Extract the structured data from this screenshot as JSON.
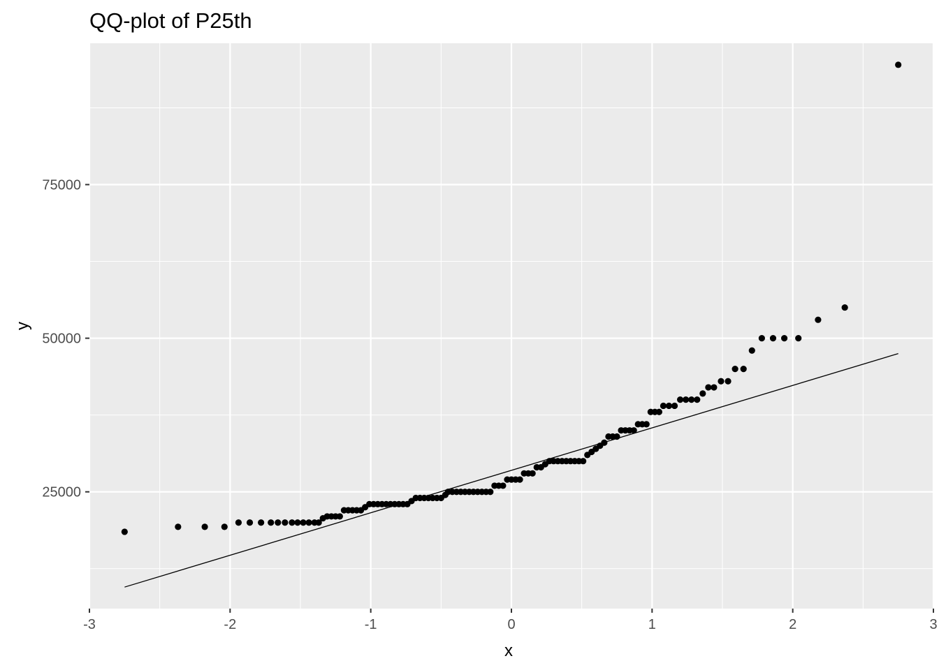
{
  "chart_data": {
    "type": "scatter",
    "title": "QQ-plot of P25th",
    "xlabel": "x",
    "ylabel": "y",
    "xlim": [
      -3.0,
      3.0
    ],
    "ylim": [
      6000,
      98000
    ],
    "x_ticks": [
      -3,
      -2,
      -1,
      0,
      1,
      2,
      3
    ],
    "x_tick_labels": [
      "-3",
      "-2",
      "-1",
      "0",
      "1",
      "2",
      "3"
    ],
    "y_ticks": [
      25000,
      50000,
      75000
    ],
    "y_tick_labels": [
      "25000",
      "50000",
      "75000"
    ],
    "grid": true,
    "background_color": "#ebebeb",
    "grid_color": "#ffffff",
    "point_color": "#000000",
    "reference_line": {
      "x": [
        -2.75,
        2.75
      ],
      "y": [
        9500,
        47500
      ]
    },
    "points": [
      [
        -2.75,
        18500
      ],
      [
        -2.37,
        19300
      ],
      [
        -2.18,
        19300
      ],
      [
        -2.04,
        19300
      ],
      [
        -1.94,
        20000
      ],
      [
        -1.86,
        20000
      ],
      [
        -1.78,
        20000
      ],
      [
        -1.71,
        20000
      ],
      [
        -1.66,
        20000
      ],
      [
        -1.61,
        20000
      ],
      [
        -1.56,
        20000
      ],
      [
        -1.52,
        20000
      ],
      [
        -1.48,
        20000
      ],
      [
        -1.44,
        20000
      ],
      [
        -1.4,
        20000
      ],
      [
        -1.37,
        20000
      ],
      [
        -1.34,
        20700
      ],
      [
        -1.31,
        21000
      ],
      [
        -1.28,
        21000
      ],
      [
        -1.25,
        21000
      ],
      [
        -1.22,
        21000
      ],
      [
        -1.19,
        22000
      ],
      [
        -1.16,
        22000
      ],
      [
        -1.13,
        22000
      ],
      [
        -1.1,
        22000
      ],
      [
        -1.07,
        22000
      ],
      [
        -1.04,
        22500
      ],
      [
        -1.01,
        23000
      ],
      [
        -0.98,
        23000
      ],
      [
        -0.95,
        23000
      ],
      [
        -0.92,
        23000
      ],
      [
        -0.89,
        23000
      ],
      [
        -0.86,
        23000
      ],
      [
        -0.83,
        23000
      ],
      [
        -0.8,
        23000
      ],
      [
        -0.77,
        23000
      ],
      [
        -0.74,
        23000
      ],
      [
        -0.71,
        23500
      ],
      [
        -0.68,
        24000
      ],
      [
        -0.65,
        24000
      ],
      [
        -0.62,
        24000
      ],
      [
        -0.59,
        24000
      ],
      [
        -0.56,
        24000
      ],
      [
        -0.53,
        24000
      ],
      [
        -0.5,
        24000
      ],
      [
        -0.47,
        24500
      ],
      [
        -0.45,
        25000
      ],
      [
        -0.42,
        25000
      ],
      [
        -0.39,
        25000
      ],
      [
        -0.36,
        25000
      ],
      [
        -0.33,
        25000
      ],
      [
        -0.3,
        25000
      ],
      [
        -0.27,
        25000
      ],
      [
        -0.24,
        25000
      ],
      [
        -0.21,
        25000
      ],
      [
        -0.18,
        25000
      ],
      [
        -0.15,
        25000
      ],
      [
        -0.12,
        26000
      ],
      [
        -0.09,
        26000
      ],
      [
        -0.06,
        26000
      ],
      [
        -0.03,
        27000
      ],
      [
        0.0,
        27000
      ],
      [
        0.03,
        27000
      ],
      [
        0.06,
        27000
      ],
      [
        0.09,
        28000
      ],
      [
        0.12,
        28000
      ],
      [
        0.15,
        28000
      ],
      [
        0.18,
        29000
      ],
      [
        0.21,
        29000
      ],
      [
        0.24,
        29500
      ],
      [
        0.27,
        30000
      ],
      [
        0.3,
        30000
      ],
      [
        0.33,
        30000
      ],
      [
        0.36,
        30000
      ],
      [
        0.39,
        30000
      ],
      [
        0.42,
        30000
      ],
      [
        0.45,
        30000
      ],
      [
        0.48,
        30000
      ],
      [
        0.51,
        30000
      ],
      [
        0.54,
        31000
      ],
      [
        0.57,
        31500
      ],
      [
        0.6,
        32000
      ],
      [
        0.63,
        32500
      ],
      [
        0.66,
        33000
      ],
      [
        0.69,
        34000
      ],
      [
        0.72,
        34000
      ],
      [
        0.75,
        34000
      ],
      [
        0.78,
        35000
      ],
      [
        0.81,
        35000
      ],
      [
        0.84,
        35000
      ],
      [
        0.87,
        35000
      ],
      [
        0.9,
        36000
      ],
      [
        0.93,
        36000
      ],
      [
        0.96,
        36000
      ],
      [
        0.99,
        38000
      ],
      [
        1.02,
        38000
      ],
      [
        1.05,
        38000
      ],
      [
        1.08,
        39000
      ],
      [
        1.12,
        39000
      ],
      [
        1.16,
        39000
      ],
      [
        1.2,
        40000
      ],
      [
        1.24,
        40000
      ],
      [
        1.28,
        40000
      ],
      [
        1.32,
        40000
      ],
      [
        1.36,
        41000
      ],
      [
        1.4,
        42000
      ],
      [
        1.44,
        42000
      ],
      [
        1.49,
        43000
      ],
      [
        1.54,
        43000
      ],
      [
        1.59,
        45000
      ],
      [
        1.65,
        45000
      ],
      [
        1.71,
        48000
      ],
      [
        1.78,
        50000
      ],
      [
        1.86,
        50000
      ],
      [
        1.94,
        50000
      ],
      [
        2.04,
        50000
      ],
      [
        2.18,
        53000
      ],
      [
        2.37,
        55000
      ],
      [
        2.75,
        94500
      ]
    ]
  }
}
